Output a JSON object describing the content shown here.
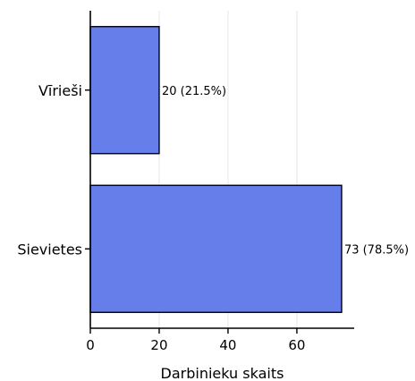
{
  "chart_data": {
    "type": "bar",
    "orientation": "horizontal",
    "title": "",
    "xlabel": "Darbinieku skaits",
    "ylabel": "",
    "categories": [
      "Vīrieši",
      "Sievietes"
    ],
    "values": [
      20,
      73
    ],
    "data_labels": [
      "20 (21.5%)",
      "73 (78.5%)"
    ],
    "xlim": [
      0,
      76.65
    ],
    "xticks": [
      0,
      20,
      40,
      60
    ],
    "xtick_labels": [
      "0",
      "20",
      "40",
      "60"
    ],
    "grid": "x-major",
    "legend": "none",
    "bar_color": "#667eea",
    "edge_color": "#000000"
  }
}
